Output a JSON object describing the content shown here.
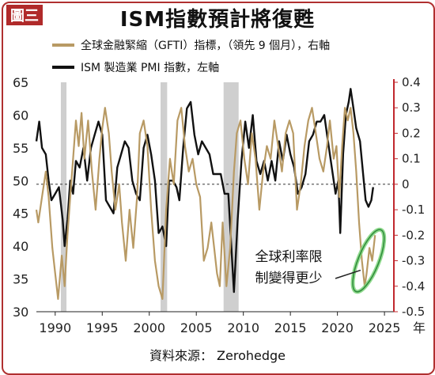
{
  "badge": "圖三",
  "title": "ISM指數預計將復甦",
  "legend": [
    {
      "label": "全球金融緊縮（GFTI）指標，（領先 9 個月），右軸",
      "color": "#b89a64"
    },
    {
      "label": "ISM 製造業 PMI 指數，左軸",
      "color": "#111111"
    }
  ],
  "annotation": [
    "全球利率限",
    "制變得更少"
  ],
  "source": "資料來源： Zerohedge",
  "chart_data": {
    "type": "line",
    "x_unit_label": "年",
    "x_ticks": [
      1990,
      1995,
      2000,
      2005,
      2010,
      2015,
      2020,
      2025
    ],
    "xlim": [
      1988,
      2026
    ],
    "left_axis": {
      "ylim": [
        30,
        65
      ],
      "ticks": [
        "30",
        "35",
        "40",
        "45",
        "50",
        "55",
        "60",
        "65"
      ]
    },
    "right_axis": {
      "ylim": [
        -0.5,
        0.4
      ],
      "ticks": [
        "-0.5",
        "-0.4",
        "-0.3",
        "-0.2",
        "-0.1",
        "0",
        "0.1",
        "0.2",
        "0.3",
        "0.4"
      ],
      "color": "#c0282e"
    },
    "recession_bands": [
      [
        1990.6,
        1991.2
      ],
      [
        2001.2,
        2001.9
      ],
      [
        2007.9,
        2009.5
      ]
    ],
    "series": [
      {
        "name": "ISM 製造業 PMI 指數，左軸",
        "axis": "left",
        "color": "#111111",
        "points": [
          [
            1988.0,
            56
          ],
          [
            1988.3,
            59
          ],
          [
            1988.6,
            55
          ],
          [
            1989.0,
            54
          ],
          [
            1989.3,
            50
          ],
          [
            1989.6,
            47
          ],
          [
            1990.0,
            48
          ],
          [
            1990.4,
            49
          ],
          [
            1990.8,
            44
          ],
          [
            1991.0,
            40
          ],
          [
            1991.3,
            44
          ],
          [
            1991.6,
            50
          ],
          [
            1991.9,
            48
          ],
          [
            1992.2,
            53
          ],
          [
            1992.6,
            52
          ],
          [
            1993.0,
            55
          ],
          [
            1993.4,
            50
          ],
          [
            1993.8,
            55
          ],
          [
            1994.2,
            57
          ],
          [
            1994.6,
            59
          ],
          [
            1995.0,
            57
          ],
          [
            1995.4,
            47
          ],
          [
            1995.8,
            46
          ],
          [
            1996.2,
            45
          ],
          [
            1996.6,
            52
          ],
          [
            1997.0,
            54
          ],
          [
            1997.4,
            56
          ],
          [
            1997.8,
            55
          ],
          [
            1998.2,
            50
          ],
          [
            1998.6,
            48
          ],
          [
            1999.0,
            47
          ],
          [
            1999.4,
            55
          ],
          [
            1999.8,
            57
          ],
          [
            2000.2,
            54
          ],
          [
            2000.6,
            50
          ],
          [
            2001.0,
            42
          ],
          [
            2001.4,
            43
          ],
          [
            2001.8,
            40
          ],
          [
            2002.1,
            50
          ],
          [
            2002.5,
            50
          ],
          [
            2002.9,
            49
          ],
          [
            2003.2,
            47
          ],
          [
            2003.6,
            55
          ],
          [
            2004.0,
            61
          ],
          [
            2004.4,
            62
          ],
          [
            2004.8,
            57
          ],
          [
            2005.2,
            54
          ],
          [
            2005.6,
            56
          ],
          [
            2006.0,
            55
          ],
          [
            2006.4,
            54
          ],
          [
            2006.8,
            51
          ],
          [
            2007.2,
            51
          ],
          [
            2007.6,
            51
          ],
          [
            2008.0,
            48
          ],
          [
            2008.4,
            48
          ],
          [
            2008.8,
            38
          ],
          [
            2009.0,
            33
          ],
          [
            2009.4,
            44
          ],
          [
            2009.8,
            53
          ],
          [
            2010.2,
            59
          ],
          [
            2010.6,
            55
          ],
          [
            2011.0,
            60
          ],
          [
            2011.4,
            53
          ],
          [
            2011.8,
            51
          ],
          [
            2012.2,
            53
          ],
          [
            2012.6,
            50
          ],
          [
            2013.0,
            53
          ],
          [
            2013.4,
            50
          ],
          [
            2013.8,
            56
          ],
          [
            2014.2,
            53
          ],
          [
            2014.6,
            57
          ],
          [
            2015.0,
            54
          ],
          [
            2015.4,
            52
          ],
          [
            2015.8,
            48
          ],
          [
            2016.2,
            49
          ],
          [
            2016.6,
            51
          ],
          [
            2017.0,
            56
          ],
          [
            2017.4,
            57
          ],
          [
            2017.8,
            59
          ],
          [
            2018.2,
            59
          ],
          [
            2018.6,
            60
          ],
          [
            2019.0,
            56
          ],
          [
            2019.4,
            52
          ],
          [
            2019.8,
            48
          ],
          [
            2020.1,
            50
          ],
          [
            2020.3,
            42
          ],
          [
            2020.6,
            54
          ],
          [
            2020.9,
            60
          ],
          [
            2021.2,
            62
          ],
          [
            2021.4,
            64
          ],
          [
            2021.7,
            61
          ],
          [
            2022.0,
            58
          ],
          [
            2022.4,
            56
          ],
          [
            2022.8,
            50
          ],
          [
            2023.0,
            47
          ],
          [
            2023.3,
            46
          ],
          [
            2023.6,
            47
          ],
          [
            2023.8,
            49
          ]
        ]
      },
      {
        "name": "全球金融緊縮（GFTI）指標，（領先 9 個月），右軸",
        "axis": "right",
        "color": "#b89a64",
        "points": [
          [
            1988.0,
            -0.1
          ],
          [
            1988.2,
            -0.15
          ],
          [
            1988.6,
            -0.05
          ],
          [
            1989.0,
            0.05
          ],
          [
            1989.3,
            -0.05
          ],
          [
            1989.7,
            -0.25
          ],
          [
            1990.0,
            -0.35
          ],
          [
            1990.3,
            -0.45
          ],
          [
            1990.7,
            -0.28
          ],
          [
            1991.0,
            -0.4
          ],
          [
            1991.3,
            -0.2
          ],
          [
            1991.6,
            -0.05
          ],
          [
            1991.9,
            0.1
          ],
          [
            1992.2,
            0.25
          ],
          [
            1992.5,
            0.15
          ],
          [
            1992.8,
            0.28
          ],
          [
            1993.1,
            0.1
          ],
          [
            1993.5,
            0.25
          ],
          [
            1993.9,
            0.05
          ],
          [
            1994.3,
            -0.1
          ],
          [
            1994.7,
            0.1
          ],
          [
            1995.0,
            0.22
          ],
          [
            1995.3,
            0.3
          ],
          [
            1995.7,
            0.2
          ],
          [
            1996.0,
            0.05
          ],
          [
            1996.4,
            -0.1
          ],
          [
            1996.8,
            0.0
          ],
          [
            1997.1,
            -0.15
          ],
          [
            1997.5,
            -0.3
          ],
          [
            1997.9,
            -0.1
          ],
          [
            1998.3,
            -0.25
          ],
          [
            1998.7,
            -0.05
          ],
          [
            1999.0,
            0.2
          ],
          [
            1999.4,
            0.25
          ],
          [
            1999.8,
            0.15
          ],
          [
            2000.2,
            -0.1
          ],
          [
            2000.6,
            -0.3
          ],
          [
            2001.0,
            -0.4
          ],
          [
            2001.4,
            -0.45
          ],
          [
            2001.8,
            -0.1
          ],
          [
            2002.2,
            0.1
          ],
          [
            2002.6,
            0.0
          ],
          [
            2003.0,
            0.25
          ],
          [
            2003.4,
            0.3
          ],
          [
            2003.8,
            0.15
          ],
          [
            2004.2,
            0.05
          ],
          [
            2004.6,
            0.1
          ],
          [
            2005.0,
            0.0
          ],
          [
            2005.4,
            -0.05
          ],
          [
            2005.8,
            -0.3
          ],
          [
            2006.2,
            -0.25
          ],
          [
            2006.6,
            -0.15
          ],
          [
            2006.9,
            -0.25
          ],
          [
            2007.2,
            -0.35
          ],
          [
            2007.5,
            -0.4
          ],
          [
            2007.8,
            -0.15
          ],
          [
            2008.2,
            -0.4
          ],
          [
            2008.6,
            -0.25
          ],
          [
            2009.0,
            0.05
          ],
          [
            2009.3,
            0.2
          ],
          [
            2009.7,
            0.25
          ],
          [
            2010.1,
            0.1
          ],
          [
            2010.5,
            0.0
          ],
          [
            2010.9,
            0.2
          ],
          [
            2011.3,
            0.1
          ],
          [
            2011.7,
            -0.1
          ],
          [
            2012.1,
            0.05
          ],
          [
            2012.5,
            0.15
          ],
          [
            2012.9,
            0.1
          ],
          [
            2013.3,
            0.25
          ],
          [
            2013.7,
            0.15
          ],
          [
            2014.1,
            0.05
          ],
          [
            2014.5,
            0.2
          ],
          [
            2014.9,
            0.25
          ],
          [
            2015.3,
            0.2
          ],
          [
            2015.7,
            -0.1
          ],
          [
            2016.1,
            0.0
          ],
          [
            2016.5,
            0.15
          ],
          [
            2016.9,
            0.25
          ],
          [
            2017.3,
            0.3
          ],
          [
            2017.7,
            0.2
          ],
          [
            2018.1,
            0.1
          ],
          [
            2018.5,
            0.05
          ],
          [
            2018.9,
            0.15
          ],
          [
            2019.2,
            0.25
          ],
          [
            2019.6,
            0.1
          ],
          [
            2019.9,
            0.15
          ],
          [
            2020.2,
            -0.05
          ],
          [
            2020.5,
            0.15
          ],
          [
            2020.8,
            0.3
          ],
          [
            2021.1,
            0.25
          ],
          [
            2021.4,
            0.3
          ],
          [
            2021.7,
            0.2
          ],
          [
            2022.0,
            0.05
          ],
          [
            2022.3,
            -0.15
          ],
          [
            2022.6,
            -0.3
          ],
          [
            2022.9,
            -0.4
          ],
          [
            2023.1,
            -0.35
          ],
          [
            2023.4,
            -0.25
          ],
          [
            2023.7,
            -0.3
          ],
          [
            2024.0,
            -0.2
          ]
        ]
      }
    ]
  }
}
